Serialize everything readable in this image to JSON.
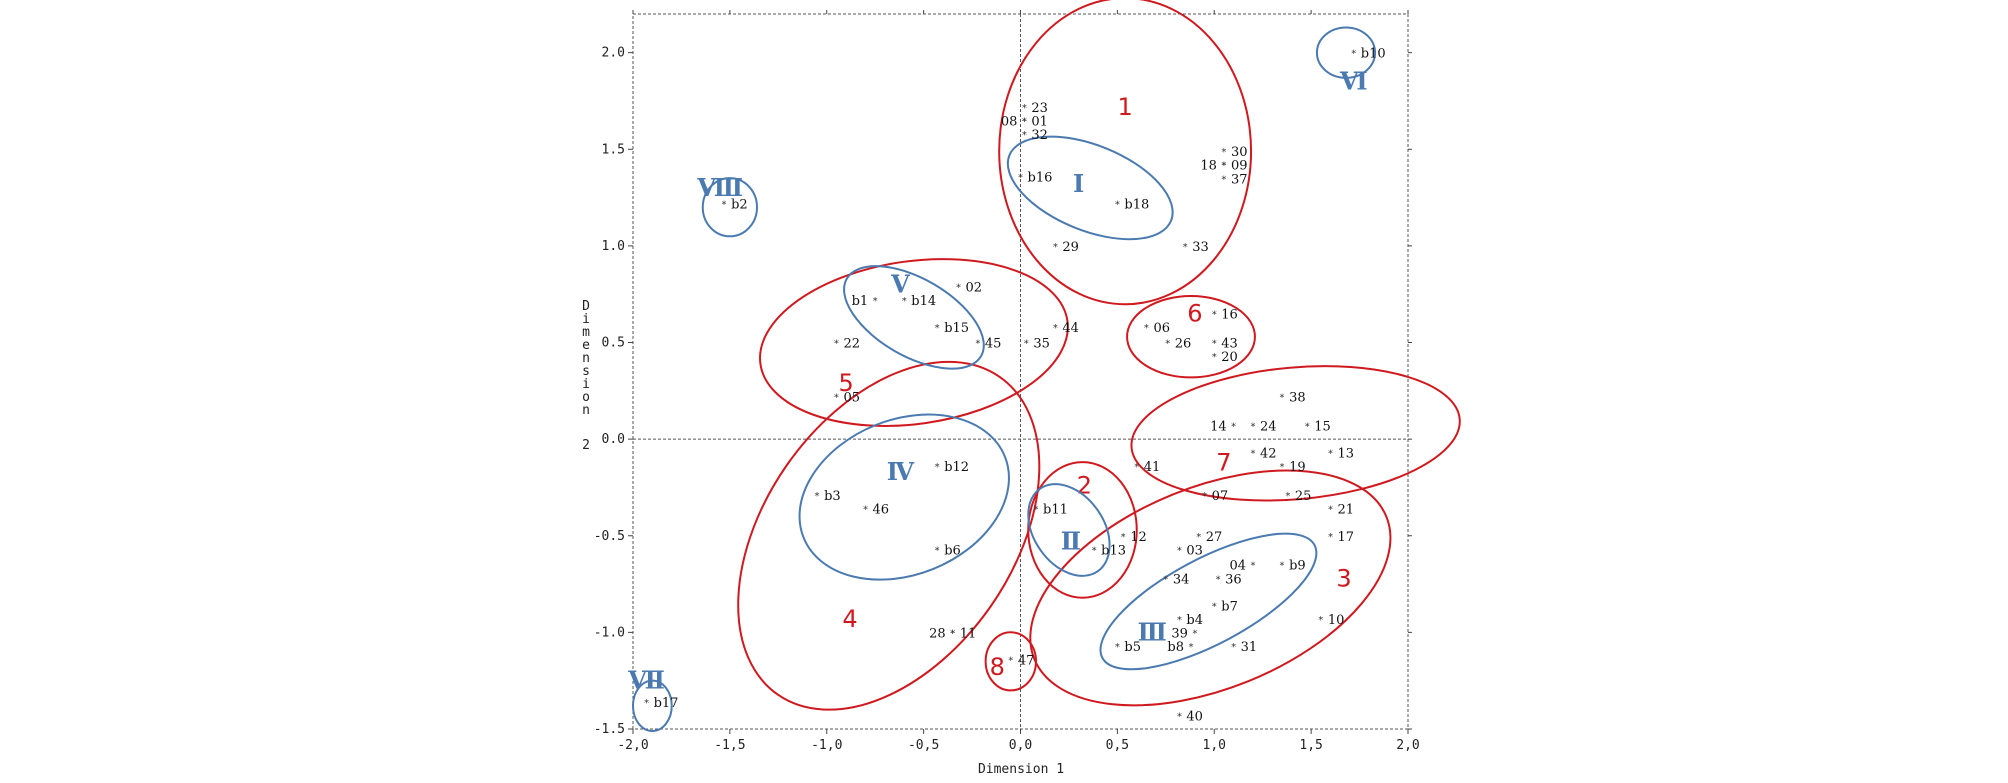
{
  "chart_data": {
    "type": "scatter",
    "xlabel": "Dimension 1",
    "ylabel": "Dimension 2",
    "xlim": [
      -2.0,
      2.0
    ],
    "ylim": [
      -1.5,
      2.2
    ],
    "x_ticks": [
      "-2,0",
      "-1,5",
      "-1,0",
      "-0,5",
      "0,0",
      "0,5",
      "1,0",
      "1,5",
      "2,0"
    ],
    "y_ticks": [
      "-1.5",
      "-1.0",
      "-0.5",
      "0.0",
      "0.5",
      "1.0",
      "1.5",
      "2.0"
    ],
    "grid": false,
    "points": [
      {
        "x": 1.72,
        "y": 2.0,
        "label": "b10",
        "anchor": "right"
      },
      {
        "x": 0.02,
        "y": 1.72,
        "label": "23",
        "anchor": "right"
      },
      {
        "x": 0.02,
        "y": 1.65,
        "label": "08",
        "anchor": "left"
      },
      {
        "x": 0.02,
        "y": 1.65,
        "label": "01",
        "anchor": "right"
      },
      {
        "x": 0.02,
        "y": 1.58,
        "label": "32",
        "anchor": "right"
      },
      {
        "x": 1.05,
        "y": 1.49,
        "label": "30",
        "anchor": "right"
      },
      {
        "x": 1.05,
        "y": 1.42,
        "label": "18",
        "anchor": "left"
      },
      {
        "x": 1.05,
        "y": 1.42,
        "label": "09",
        "anchor": "right"
      },
      {
        "x": 1.05,
        "y": 1.35,
        "label": "37",
        "anchor": "right"
      },
      {
        "x": 0.0,
        "y": 1.36,
        "label": "b16",
        "anchor": "right"
      },
      {
        "x": 0.5,
        "y": 1.22,
        "label": "b18",
        "anchor": "right"
      },
      {
        "x": -1.53,
        "y": 1.22,
        "label": "b2",
        "anchor": "right"
      },
      {
        "x": 0.18,
        "y": 1.0,
        "label": "29",
        "anchor": "right"
      },
      {
        "x": 0.85,
        "y": 1.0,
        "label": "33",
        "anchor": "right"
      },
      {
        "x": -0.32,
        "y": 0.79,
        "label": "02",
        "anchor": "right"
      },
      {
        "x": -0.75,
        "y": 0.72,
        "label": "b1",
        "anchor": "left"
      },
      {
        "x": -0.6,
        "y": 0.72,
        "label": "b14",
        "anchor": "right"
      },
      {
        "x": -0.43,
        "y": 0.58,
        "label": "b15",
        "anchor": "right"
      },
      {
        "x": 0.18,
        "y": 0.58,
        "label": "44",
        "anchor": "right"
      },
      {
        "x": 1.0,
        "y": 0.65,
        "label": "16",
        "anchor": "right"
      },
      {
        "x": 0.65,
        "y": 0.58,
        "label": "06",
        "anchor": "right"
      },
      {
        "x": -0.95,
        "y": 0.5,
        "label": "22",
        "anchor": "right"
      },
      {
        "x": -0.22,
        "y": 0.5,
        "label": "45",
        "anchor": "right"
      },
      {
        "x": 0.03,
        "y": 0.5,
        "label": "35",
        "anchor": "right"
      },
      {
        "x": 0.76,
        "y": 0.5,
        "label": "26",
        "anchor": "right"
      },
      {
        "x": 1.0,
        "y": 0.5,
        "label": "43",
        "anchor": "right"
      },
      {
        "x": 1.0,
        "y": 0.43,
        "label": "20",
        "anchor": "right"
      },
      {
        "x": -0.95,
        "y": 0.22,
        "label": "05",
        "anchor": "right"
      },
      {
        "x": 1.35,
        "y": 0.22,
        "label": "38",
        "anchor": "right"
      },
      {
        "x": 1.1,
        "y": 0.07,
        "label": "14",
        "anchor": "left"
      },
      {
        "x": 1.2,
        "y": 0.07,
        "label": "24",
        "anchor": "right"
      },
      {
        "x": 1.48,
        "y": 0.07,
        "label": "15",
        "anchor": "right"
      },
      {
        "x": 1.2,
        "y": -0.07,
        "label": "42",
        "anchor": "right"
      },
      {
        "x": 1.6,
        "y": -0.07,
        "label": "13",
        "anchor": "right"
      },
      {
        "x": 1.35,
        "y": -0.14,
        "label": "19",
        "anchor": "right"
      },
      {
        "x": -0.43,
        "y": -0.14,
        "label": "b12",
        "anchor": "right"
      },
      {
        "x": 0.6,
        "y": -0.14,
        "label": "41",
        "anchor": "right"
      },
      {
        "x": -1.05,
        "y": -0.29,
        "label": "b3",
        "anchor": "right"
      },
      {
        "x": 0.95,
        "y": -0.29,
        "label": "07",
        "anchor": "right"
      },
      {
        "x": 1.38,
        "y": -0.29,
        "label": "25",
        "anchor": "right"
      },
      {
        "x": 0.08,
        "y": -0.36,
        "label": "b11",
        "anchor": "right"
      },
      {
        "x": -0.8,
        "y": -0.36,
        "label": "46",
        "anchor": "right"
      },
      {
        "x": 1.6,
        "y": -0.36,
        "label": "21",
        "anchor": "right"
      },
      {
        "x": 0.53,
        "y": -0.5,
        "label": "12",
        "anchor": "right"
      },
      {
        "x": 0.92,
        "y": -0.5,
        "label": "27",
        "anchor": "right"
      },
      {
        "x": 1.6,
        "y": -0.5,
        "label": "17",
        "anchor": "right"
      },
      {
        "x": -0.43,
        "y": -0.57,
        "label": "b6",
        "anchor": "right"
      },
      {
        "x": 0.38,
        "y": -0.57,
        "label": "b13",
        "anchor": "right"
      },
      {
        "x": 0.82,
        "y": -0.57,
        "label": "03",
        "anchor": "right"
      },
      {
        "x": 1.2,
        "y": -0.65,
        "label": "04",
        "anchor": "left"
      },
      {
        "x": 1.35,
        "y": -0.65,
        "label": "b9",
        "anchor": "right"
      },
      {
        "x": 0.75,
        "y": -0.72,
        "label": "34",
        "anchor": "right"
      },
      {
        "x": 1.02,
        "y": -0.72,
        "label": "36",
        "anchor": "right"
      },
      {
        "x": 1.0,
        "y": -0.86,
        "label": "b7",
        "anchor": "right"
      },
      {
        "x": 0.82,
        "y": -0.93,
        "label": "b4",
        "anchor": "right"
      },
      {
        "x": 1.55,
        "y": -0.93,
        "label": "10",
        "anchor": "right"
      },
      {
        "x": -0.35,
        "y": -1.0,
        "label": "28",
        "anchor": "left"
      },
      {
        "x": -0.35,
        "y": -1.0,
        "label": "11",
        "anchor": "right"
      },
      {
        "x": 0.9,
        "y": -1.0,
        "label": "39",
        "anchor": "left"
      },
      {
        "x": 0.5,
        "y": -1.07,
        "label": "b5",
        "anchor": "right"
      },
      {
        "x": 0.88,
        "y": -1.07,
        "label": "b8",
        "anchor": "left"
      },
      {
        "x": 1.1,
        "y": -1.07,
        "label": "31",
        "anchor": "right"
      },
      {
        "x": -0.05,
        "y": -1.14,
        "label": "47",
        "anchor": "right"
      },
      {
        "x": -1.93,
        "y": -1.36,
        "label": "b17",
        "anchor": "right"
      },
      {
        "x": 0.82,
        "y": -1.43,
        "label": "40",
        "anchor": "right"
      }
    ],
    "clusters": [
      {
        "label": "1",
        "color": "#d0191e",
        "cx": 0.54,
        "cy": 1.49,
        "rx": 0.65,
        "ry": 0.79,
        "lx": 0.54,
        "ly": 1.72
      },
      {
        "label": "2",
        "color": "#d0191e",
        "cx": 0.32,
        "cy": -0.47,
        "rx": 0.28,
        "ry": 0.35,
        "lx": 0.33,
        "ly": -0.24
      },
      {
        "label": "3",
        "color": "#d0191e",
        "cx": 0.98,
        "cy": -0.77,
        "rx": 0.98,
        "ry": 0.52,
        "rot": -22,
        "lx": 1.67,
        "ly": -0.72
      },
      {
        "label": "4",
        "color": "#d0191e",
        "cx": -0.68,
        "cy": -0.5,
        "rx": 1.0,
        "ry": 0.64,
        "rot": -55,
        "lx": -0.88,
        "ly": -0.93
      },
      {
        "label": "5",
        "color": "#d0191e",
        "cx": -0.55,
        "cy": 0.5,
        "rx": 0.8,
        "ry": 0.42,
        "rot": -8,
        "lx": -0.9,
        "ly": 0.29
      },
      {
        "label": "6",
        "color": "#d0191e",
        "cx": 0.88,
        "cy": 0.53,
        "rx": 0.33,
        "ry": 0.21,
        "lx": 0.9,
        "ly": 0.65
      },
      {
        "label": "7",
        "color": "#d0191e",
        "cx": 1.42,
        "cy": 0.03,
        "rx": 0.85,
        "ry": 0.34,
        "rot": -5,
        "lx": 1.05,
        "ly": -0.12
      },
      {
        "label": "8",
        "color": "#d0191e",
        "cx": -0.05,
        "cy": -1.15,
        "rx": 0.13,
        "ry": 0.15,
        "lx": -0.12,
        "ly": -1.18
      },
      {
        "label": "Ⅰ",
        "color": "#4a7ab0",
        "cx": 0.36,
        "cy": 1.3,
        "rx": 0.45,
        "ry": 0.22,
        "rot": 22,
        "lx": 0.3,
        "ly": 1.32
      },
      {
        "label": "Ⅱ",
        "color": "#4a7ab0",
        "cx": 0.25,
        "cy": -0.47,
        "rx": 0.26,
        "ry": 0.18,
        "rot": 55,
        "lx": 0.26,
        "ly": -0.53
      },
      {
        "label": "Ⅲ",
        "color": "#4a7ab0",
        "cx": 0.97,
        "cy": -0.84,
        "rx": 0.62,
        "ry": 0.22,
        "rot": -28,
        "lx": 0.68,
        "ly": -1.0
      },
      {
        "label": "Ⅳ",
        "color": "#4a7ab0",
        "cx": -0.6,
        "cy": -0.3,
        "rx": 0.56,
        "ry": 0.4,
        "rot": -22,
        "lx": -0.62,
        "ly": -0.17
      },
      {
        "label": "Ⅴ",
        "color": "#4a7ab0",
        "cx": -0.55,
        "cy": 0.63,
        "rx": 0.4,
        "ry": 0.2,
        "rot": 30,
        "lx": -0.62,
        "ly": 0.8
      },
      {
        "label": "Ⅵ",
        "color": "#4a7ab0",
        "cx": 1.68,
        "cy": 2.0,
        "rx": 0.15,
        "ry": 0.13,
        "lx": 1.72,
        "ly": 1.85
      },
      {
        "label": "Ⅶ",
        "color": "#4a7ab0",
        "cx": -1.9,
        "cy": -1.38,
        "rx": 0.1,
        "ry": 0.13,
        "lx": -1.93,
        "ly": -1.25
      },
      {
        "label": "Ⅷ",
        "color": "#4a7ab0",
        "cx": -1.5,
        "cy": 1.2,
        "rx": 0.14,
        "ry": 0.15,
        "lx": -1.55,
        "ly": 1.3
      }
    ]
  }
}
